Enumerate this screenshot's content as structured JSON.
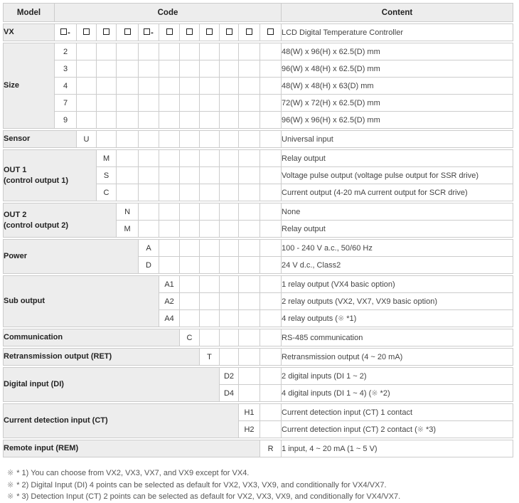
{
  "header": {
    "model": "Model",
    "code": "Code",
    "content": "Content"
  },
  "table": {
    "vx": {
      "label": "VX",
      "boxes": [
        "□-",
        "□",
        "□",
        "□",
        "□-",
        "□",
        "□",
        "□",
        "□",
        "□",
        "□"
      ],
      "content": "LCD Digital Temperature Controller"
    },
    "groups": [
      {
        "label": "Size",
        "code_col": 1,
        "rows": [
          {
            "code": "2",
            "content": "48(W) x 96(H) x 62.5(D) mm"
          },
          {
            "code": "3",
            "content": "96(W) x 48(H) x 62.5(D) mm"
          },
          {
            "code": "4",
            "content": "48(W) x 48(H) x 63(D) mm"
          },
          {
            "code": "7",
            "content": "72(W) x 72(H) x 62.5(D) mm"
          },
          {
            "code": "9",
            "content": "96(W) x 96(H) x 62.5(D) mm"
          }
        ]
      },
      {
        "label": "Sensor",
        "code_col": 2,
        "rows": [
          {
            "code": "U",
            "content": "Universal input"
          }
        ]
      },
      {
        "label": "OUT 1\n(control output 1)",
        "code_col": 3,
        "rows": [
          {
            "code": "M",
            "content": "Relay output"
          },
          {
            "code": "S",
            "content": "Voltage pulse output (voltage pulse output for SSR drive)"
          },
          {
            "code": "C",
            "content": "Current output (4-20 mA current output for SCR drive)"
          }
        ]
      },
      {
        "label": "OUT 2\n(control output 2)",
        "code_col": 4,
        "rows": [
          {
            "code": "N",
            "content": "None"
          },
          {
            "code": "M",
            "content": "Relay output"
          }
        ]
      },
      {
        "label": "Power",
        "code_col": 5,
        "rows": [
          {
            "code": "A",
            "content": "100 - 240 V a.c., 50/60 Hz"
          },
          {
            "code": "D",
            "content": "24 V d.c., Class2"
          }
        ]
      },
      {
        "label": "Sub output",
        "code_col": 6,
        "rows": [
          {
            "code": "A1",
            "content": "1 relay output (VX4 basic option)"
          },
          {
            "code": "A2",
            "content": "2 relay outputs (VX2, VX7, VX9 basic option)"
          },
          {
            "code": "A4",
            "content": "4 relay outputs (※ *1)"
          }
        ]
      },
      {
        "label": "Communication",
        "code_col": 7,
        "rows": [
          {
            "code": "C",
            "content": "RS-485 communication"
          }
        ]
      },
      {
        "label": "Retransmission output (RET)",
        "code_col": 8,
        "rows": [
          {
            "code": "T",
            "content": "Retransmission output (4 ~ 20 mA)"
          }
        ]
      },
      {
        "label": "Digital input (DI)",
        "code_col": 9,
        "rows": [
          {
            "code": "D2",
            "content": "2 digital inputs (DI 1 ~ 2)"
          },
          {
            "code": "D4",
            "content": "4 digital inputs (DI 1 ~ 4) (※ *2)"
          }
        ]
      },
      {
        "label": "Current detection input (CT)",
        "code_col": 10,
        "rows": [
          {
            "code": "H1",
            "content": "Current detection input (CT) 1 contact"
          },
          {
            "code": "H2",
            "content": "Current detection input (CT) 2 contact (※ *3)"
          }
        ]
      },
      {
        "label": "Remote input (REM)",
        "code_col": 11,
        "rows": [
          {
            "code": "R",
            "content": "1 input, 4 ~ 20 mA (1 ~ 5 V)"
          }
        ]
      }
    ]
  },
  "footnotes": [
    {
      "mark": "※",
      "text": "* 1) You can choose from VX2, VX3, VX7, and VX9 except for VX4."
    },
    {
      "mark": "※",
      "text": "* 2) Digital Input (DI) 4 points can be selected as default for VX2, VX3, VX9, and conditionally for VX4/VX7."
    },
    {
      "mark": "※",
      "text": "* 3) Detection Input (CT) 2 points can be selected as default for VX2, VX3, VX9, and conditionally for VX4/VX7."
    }
  ],
  "colors": {
    "header_bg": "#ededed",
    "border": "#cccccc",
    "label_text": "#222222",
    "content_text": "#444444",
    "note_mark": "#9a9a9a"
  }
}
